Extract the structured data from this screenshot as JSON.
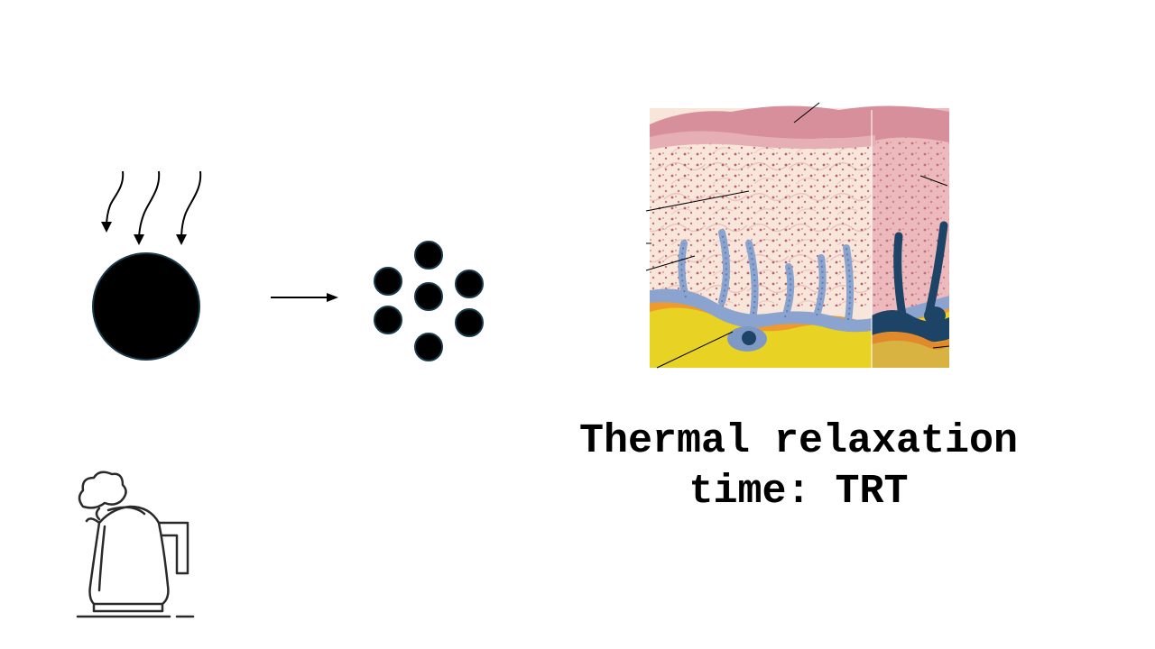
{
  "caption": {
    "line1": "Thermal relaxation",
    "line2": "time: TRT"
  },
  "icons": {
    "heat_rays": "heat-ray-arrows-icon",
    "particle": "large-particle",
    "arrow": "right-arrow-icon",
    "fragments": "small-particles",
    "skin": "skin-cross-section",
    "kettle": "boiling-kettle-icon"
  },
  "colors": {
    "particle_fill": "#000000",
    "particle_stroke": "#17394a",
    "skin_top": "#d98f9a",
    "skin_body": "#f6e1d6",
    "skin_dots": "#a8485c",
    "melanocyte": "#7f99c7",
    "melanocyte_dark": "#1d4466",
    "fat_yellow": "#e7cf1d",
    "fat_orange": "#ee9a2c"
  }
}
